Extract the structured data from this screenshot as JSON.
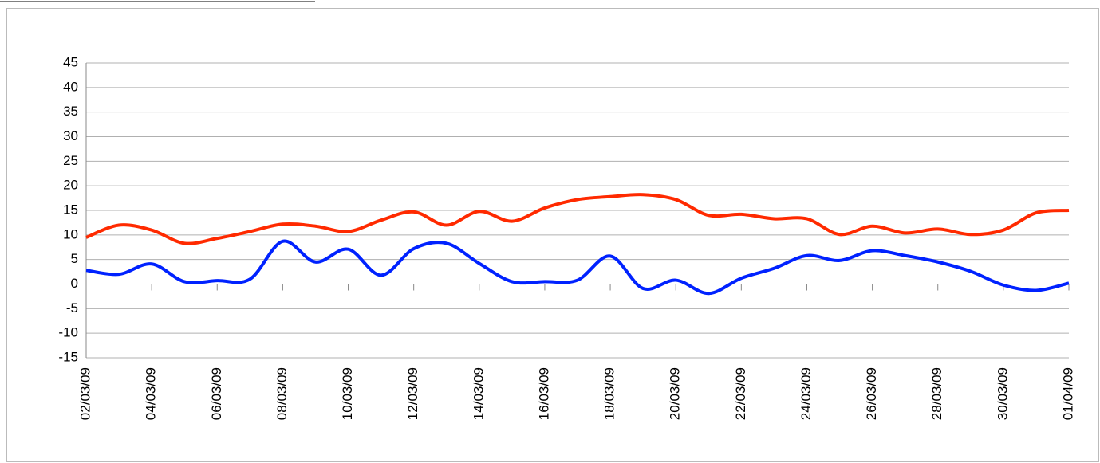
{
  "chart_data": {
    "type": "line",
    "categories": [
      "02/03/09",
      null,
      "04/03/09",
      null,
      "06/03/09",
      null,
      "08/03/09",
      null,
      "10/03/09",
      null,
      "12/03/09",
      null,
      "14/03/09",
      null,
      "16/03/09",
      null,
      "18/03/09",
      null,
      "20/03/09",
      null,
      "22/03/09",
      null,
      "24/03/09",
      null,
      "26/03/09",
      null,
      "28/03/09",
      null,
      "30/03/09",
      null,
      "01/04/09"
    ],
    "series": [
      {
        "color": "#ff2a00",
        "values": [
          9.5,
          12,
          11,
          8.3,
          9.3,
          10.7,
          12.2,
          11.8,
          10.7,
          13,
          14.7,
          12,
          14.8,
          12.8,
          15.5,
          17.2,
          17.8,
          18.2,
          17.2,
          14,
          14.2,
          13.3,
          13.3,
          10.1,
          11.8,
          10.4,
          11.2,
          10.1,
          11,
          14.5,
          15
        ]
      },
      {
        "color": "#0022ff",
        "values": [
          2.8,
          2,
          4.1,
          0.5,
          0.7,
          1,
          8.7,
          4.5,
          7.1,
          1.8,
          7.2,
          8.3,
          4.2,
          0.5,
          0.5,
          0.8,
          5.7,
          -0.9,
          0.8,
          -1.9,
          1.2,
          3.2,
          5.8,
          4.8,
          6.8,
          5.8,
          4.5,
          2.6,
          -0.2,
          -1.3,
          0.2
        ]
      }
    ],
    "ylim": [
      -15,
      45
    ],
    "yticks": [
      -15,
      -10,
      -5,
      0,
      5,
      10,
      15,
      20,
      25,
      30,
      35,
      40,
      45
    ],
    "grid": true
  }
}
